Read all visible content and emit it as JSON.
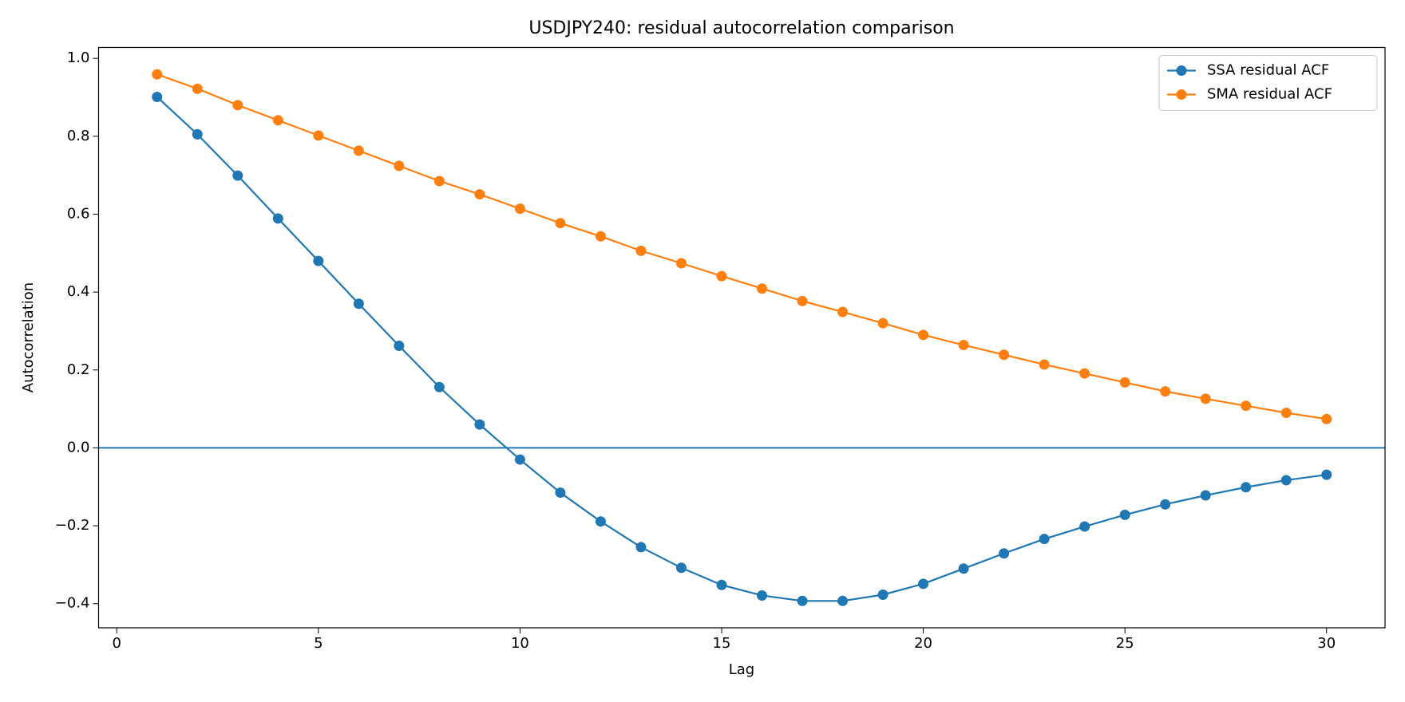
{
  "chart_data": {
    "type": "line",
    "title": "USDJPY240: residual autocorrelation comparison",
    "xlabel": "Lag",
    "ylabel": "Autocorrelation",
    "x": [
      1,
      2,
      3,
      4,
      5,
      6,
      7,
      8,
      9,
      10,
      11,
      12,
      13,
      14,
      15,
      16,
      17,
      18,
      19,
      20,
      21,
      22,
      23,
      24,
      25,
      26,
      27,
      28,
      29,
      30
    ],
    "series": [
      {
        "name": "SSA residual ACF",
        "color": "#1f77b4",
        "values": [
          0.901,
          0.805,
          0.699,
          0.589,
          0.48,
          0.37,
          0.262,
          0.156,
          0.06,
          -0.03,
          -0.115,
          -0.189,
          -0.255,
          -0.308,
          -0.352,
          -0.379,
          -0.393,
          -0.393,
          -0.377,
          -0.349,
          -0.31,
          -0.271,
          -0.234,
          -0.202,
          -0.172,
          -0.145,
          -0.122,
          -0.101,
          -0.083,
          -0.069
        ]
      },
      {
        "name": "SMA residual ACF",
        "color": "#ff7f0e",
        "values": [
          0.959,
          0.922,
          0.88,
          0.841,
          0.802,
          0.763,
          0.724,
          0.685,
          0.651,
          0.614,
          0.577,
          0.543,
          0.506,
          0.474,
          0.441,
          0.409,
          0.377,
          0.349,
          0.32,
          0.29,
          0.264,
          0.239,
          0.214,
          0.191,
          0.168,
          0.145,
          0.126,
          0.108,
          0.09,
          0.074
        ]
      }
    ],
    "hlines": [
      {
        "value": 0,
        "color": "#1f77b4"
      }
    ],
    "xlim": [
      -0.45,
      31.45
    ],
    "ylim": [
      -0.462,
      1.028
    ],
    "xticks": [
      0,
      5,
      10,
      15,
      20,
      25,
      30
    ],
    "yticks": [
      {
        "value": -0.4,
        "label": "−0.4"
      },
      {
        "value": -0.2,
        "label": "−0.2"
      },
      {
        "value": 0,
        "label": "0.0"
      },
      0.2,
      0.4,
      0.6,
      0.8,
      {
        "value": 1,
        "label": "1.0"
      }
    ],
    "legend": "upper right",
    "grid": false
  }
}
